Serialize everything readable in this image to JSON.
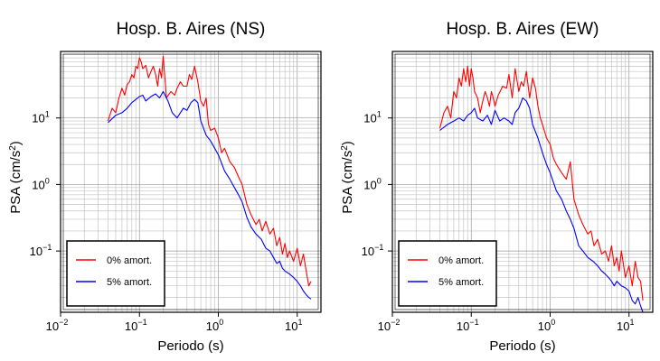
{
  "chart_data": [
    {
      "type": "line",
      "title": "Hosp. B. Aires (NS)",
      "xlabel": "Periodo (s)",
      "ylabel": "PSA (cm/s²)",
      "xscale": "log",
      "yscale": "log",
      "xlim": [
        0.01,
        20
      ],
      "ylim": [
        0.012,
        100
      ],
      "x_ticks": [
        {
          "base": "10",
          "exp": "−2"
        },
        {
          "base": "10",
          "exp": "−1"
        },
        {
          "base": "10",
          "exp": "0"
        },
        {
          "base": "10",
          "exp": "1"
        }
      ],
      "y_ticks": [
        {
          "base": "10",
          "exp": "−1"
        },
        {
          "base": "10",
          "exp": "0"
        },
        {
          "base": "10",
          "exp": "1"
        }
      ],
      "grid": true,
      "legend_position": "bottom-left",
      "series": [
        {
          "name": "0% amort.",
          "color": "#ff0000",
          "x": [
            0.04,
            0.045,
            0.05,
            0.055,
            0.06,
            0.065,
            0.07,
            0.075,
            0.08,
            0.085,
            0.09,
            0.095,
            0.1,
            0.105,
            0.11,
            0.12,
            0.13,
            0.14,
            0.15,
            0.16,
            0.17,
            0.18,
            0.19,
            0.2,
            0.22,
            0.25,
            0.28,
            0.3,
            0.33,
            0.36,
            0.4,
            0.43,
            0.46,
            0.5,
            0.55,
            0.6,
            0.65,
            0.7,
            0.75,
            0.8,
            0.9,
            1.0,
            1.1,
            1.2,
            1.4,
            1.6,
            1.8,
            2.0,
            2.3,
            2.6,
            3.0,
            3.3,
            3.6,
            4.0,
            4.5,
            5.0,
            5.5,
            6.0,
            6.5,
            7.0,
            7.5,
            8.0,
            9.0,
            10.0,
            11.0,
            12.0,
            13.0,
            14.0,
            15.0
          ],
          "y": [
            9,
            14,
            12,
            20,
            28,
            22,
            32,
            35,
            45,
            40,
            60,
            55,
            80,
            70,
            55,
            62,
            40,
            50,
            60,
            45,
            30,
            55,
            40,
            85,
            20,
            25,
            22,
            28,
            35,
            30,
            30,
            45,
            38,
            60,
            35,
            18,
            15,
            20,
            8,
            6.5,
            7,
            5,
            3,
            3.5,
            2.2,
            1.8,
            1.3,
            1,
            0.5,
            0.35,
            0.25,
            0.3,
            0.2,
            0.28,
            0.18,
            0.22,
            0.12,
            0.16,
            0.09,
            0.13,
            0.08,
            0.1,
            0.07,
            0.11,
            0.06,
            0.09,
            0.05,
            0.03,
            0.035
          ]
        },
        {
          "name": "5% amort.",
          "color": "#0000ff",
          "x": [
            0.04,
            0.05,
            0.06,
            0.07,
            0.08,
            0.09,
            0.1,
            0.11,
            0.12,
            0.14,
            0.16,
            0.18,
            0.2,
            0.23,
            0.26,
            0.3,
            0.33,
            0.36,
            0.4,
            0.45,
            0.5,
            0.55,
            0.6,
            0.7,
            0.8,
            0.9,
            1.0,
            1.2,
            1.4,
            1.6,
            1.8,
            2.0,
            2.3,
            2.6,
            3.0,
            3.5,
            4.0,
            4.5,
            5.0,
            5.5,
            6.0,
            6.5,
            7.0,
            8.0,
            9.0,
            10.0,
            11.0,
            12.0,
            13.0,
            14.0,
            15.0
          ],
          "y": [
            8.5,
            11,
            12,
            14,
            17,
            19,
            21,
            22,
            18,
            21,
            23,
            20,
            25,
            18,
            12,
            10,
            12,
            14,
            13,
            17,
            19,
            17,
            9,
            5.5,
            4.5,
            3.5,
            2.8,
            1.6,
            1.2,
            0.9,
            0.7,
            0.55,
            0.32,
            0.23,
            0.18,
            0.15,
            0.11,
            0.1,
            0.08,
            0.065,
            0.07,
            0.055,
            0.05,
            0.045,
            0.04,
            0.035,
            0.03,
            0.025,
            0.022,
            0.02,
            0.019
          ]
        }
      ]
    },
    {
      "type": "line",
      "title": "Hosp. B. Aires (EW)",
      "xlabel": "Periodo (s)",
      "ylabel": "PSA (cm/s²)",
      "xscale": "log",
      "yscale": "log",
      "xlim": [
        0.01,
        20
      ],
      "ylim": [
        0.012,
        100
      ],
      "x_ticks": [
        {
          "base": "10",
          "exp": "−2"
        },
        {
          "base": "10",
          "exp": "−1"
        },
        {
          "base": "10",
          "exp": "0"
        },
        {
          "base": "10",
          "exp": "1"
        }
      ],
      "y_ticks": [
        {
          "base": "10",
          "exp": "−1"
        },
        {
          "base": "10",
          "exp": "0"
        },
        {
          "base": "10",
          "exp": "1"
        }
      ],
      "grid": true,
      "legend_position": "bottom-left",
      "series": [
        {
          "name": "0% amort.",
          "color": "#ff0000",
          "x": [
            0.04,
            0.045,
            0.05,
            0.055,
            0.06,
            0.065,
            0.07,
            0.075,
            0.08,
            0.085,
            0.09,
            0.095,
            0.1,
            0.105,
            0.11,
            0.12,
            0.13,
            0.14,
            0.15,
            0.16,
            0.17,
            0.18,
            0.19,
            0.2,
            0.22,
            0.25,
            0.28,
            0.3,
            0.33,
            0.36,
            0.4,
            0.43,
            0.46,
            0.5,
            0.55,
            0.6,
            0.65,
            0.7,
            0.75,
            0.8,
            0.9,
            1.0,
            1.1,
            1.2,
            1.4,
            1.6,
            1.8,
            2.0,
            2.3,
            2.6,
            3.0,
            3.3,
            3.6,
            4.0,
            4.5,
            5.0,
            5.5,
            6.0,
            6.5,
            7.0,
            7.5,
            8.0,
            9.0,
            10.0,
            11.0,
            12.0,
            13.0,
            14.0,
            15.0
          ],
          "y": [
            7,
            12,
            15,
            10,
            25,
            20,
            40,
            30,
            55,
            35,
            60,
            30,
            55,
            40,
            25,
            20,
            12,
            18,
            25,
            20,
            15,
            25,
            20,
            15,
            22,
            30,
            28,
            45,
            20,
            55,
            25,
            35,
            30,
            50,
            20,
            40,
            28,
            15,
            10,
            8,
            5,
            4,
            2.5,
            2,
            1.5,
            1.2,
            2.2,
            0.6,
            0.35,
            0.25,
            0.18,
            0.2,
            0.12,
            0.15,
            0.09,
            0.1,
            0.07,
            0.12,
            0.06,
            0.08,
            0.05,
            0.1,
            0.04,
            0.06,
            0.03,
            0.07,
            0.04,
            0.035,
            0.018
          ]
        },
        {
          "name": "5% amort.",
          "color": "#0000ff",
          "x": [
            0.04,
            0.05,
            0.06,
            0.07,
            0.08,
            0.09,
            0.1,
            0.11,
            0.12,
            0.14,
            0.16,
            0.18,
            0.2,
            0.23,
            0.26,
            0.3,
            0.33,
            0.36,
            0.4,
            0.45,
            0.5,
            0.55,
            0.6,
            0.7,
            0.8,
            0.9,
            1.0,
            1.2,
            1.4,
            1.6,
            1.8,
            2.0,
            2.3,
            2.6,
            3.0,
            3.5,
            4.0,
            4.5,
            5.0,
            5.5,
            6.0,
            6.5,
            7.0,
            8.0,
            9.0,
            10.0,
            11.0,
            12.0,
            13.0,
            14.0,
            15.0
          ],
          "y": [
            6.5,
            8,
            9,
            10,
            9,
            11,
            12,
            14,
            10,
            9,
            11,
            8,
            13,
            9,
            10,
            9,
            8,
            12,
            14,
            20,
            18,
            14,
            8,
            5,
            3,
            2,
            1.5,
            0.8,
            0.6,
            0.4,
            0.3,
            0.22,
            0.12,
            0.1,
            0.08,
            0.07,
            0.06,
            0.05,
            0.045,
            0.04,
            0.035,
            0.03,
            0.035,
            0.03,
            0.028,
            0.025,
            0.018,
            0.016,
            0.02,
            0.015,
            0.012
          ]
        }
      ]
    }
  ]
}
